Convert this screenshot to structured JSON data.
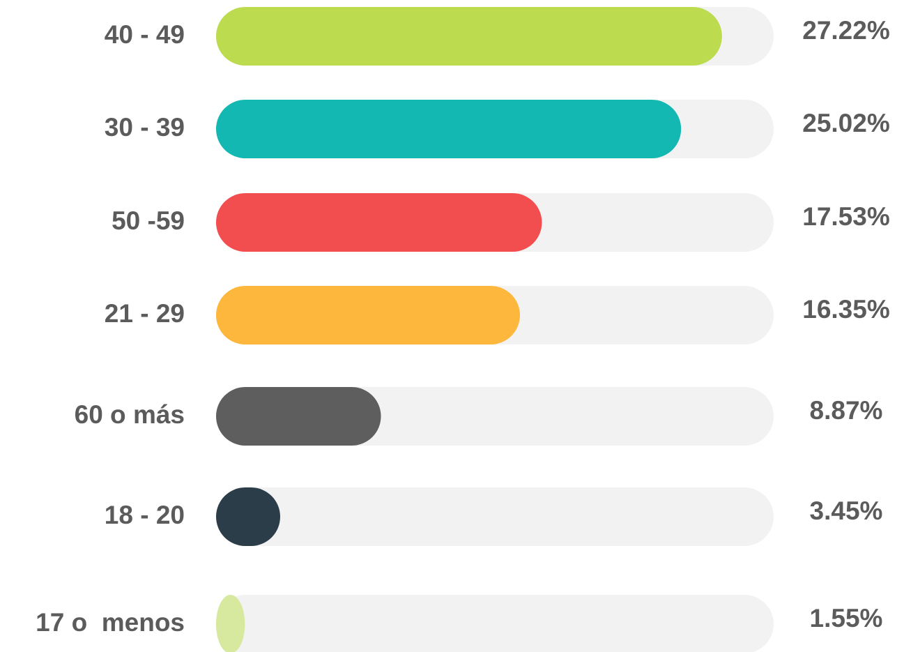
{
  "chart_data": {
    "type": "bar",
    "orientation": "horizontal",
    "categories": [
      "40 - 49",
      "30 - 39",
      "50 -59",
      "21 - 29",
      "60 o más",
      "18 - 20",
      "17 o  menos"
    ],
    "values": [
      27.22,
      25.02,
      17.53,
      16.35,
      8.87,
      3.45,
      1.55
    ],
    "value_labels": [
      "27.22%",
      "25.02%",
      "17.53%",
      "16.35%",
      "8.87%",
      "3.45%",
      "1.55%"
    ],
    "colors": [
      "#bcdb4e",
      "#14b8b2",
      "#f24d4f",
      "#fdb73c",
      "#5e5e5e",
      "#2b3d49",
      "#d7e89f"
    ],
    "track_color": "#f2f2f2",
    "xlim": [
      0,
      30
    ]
  }
}
